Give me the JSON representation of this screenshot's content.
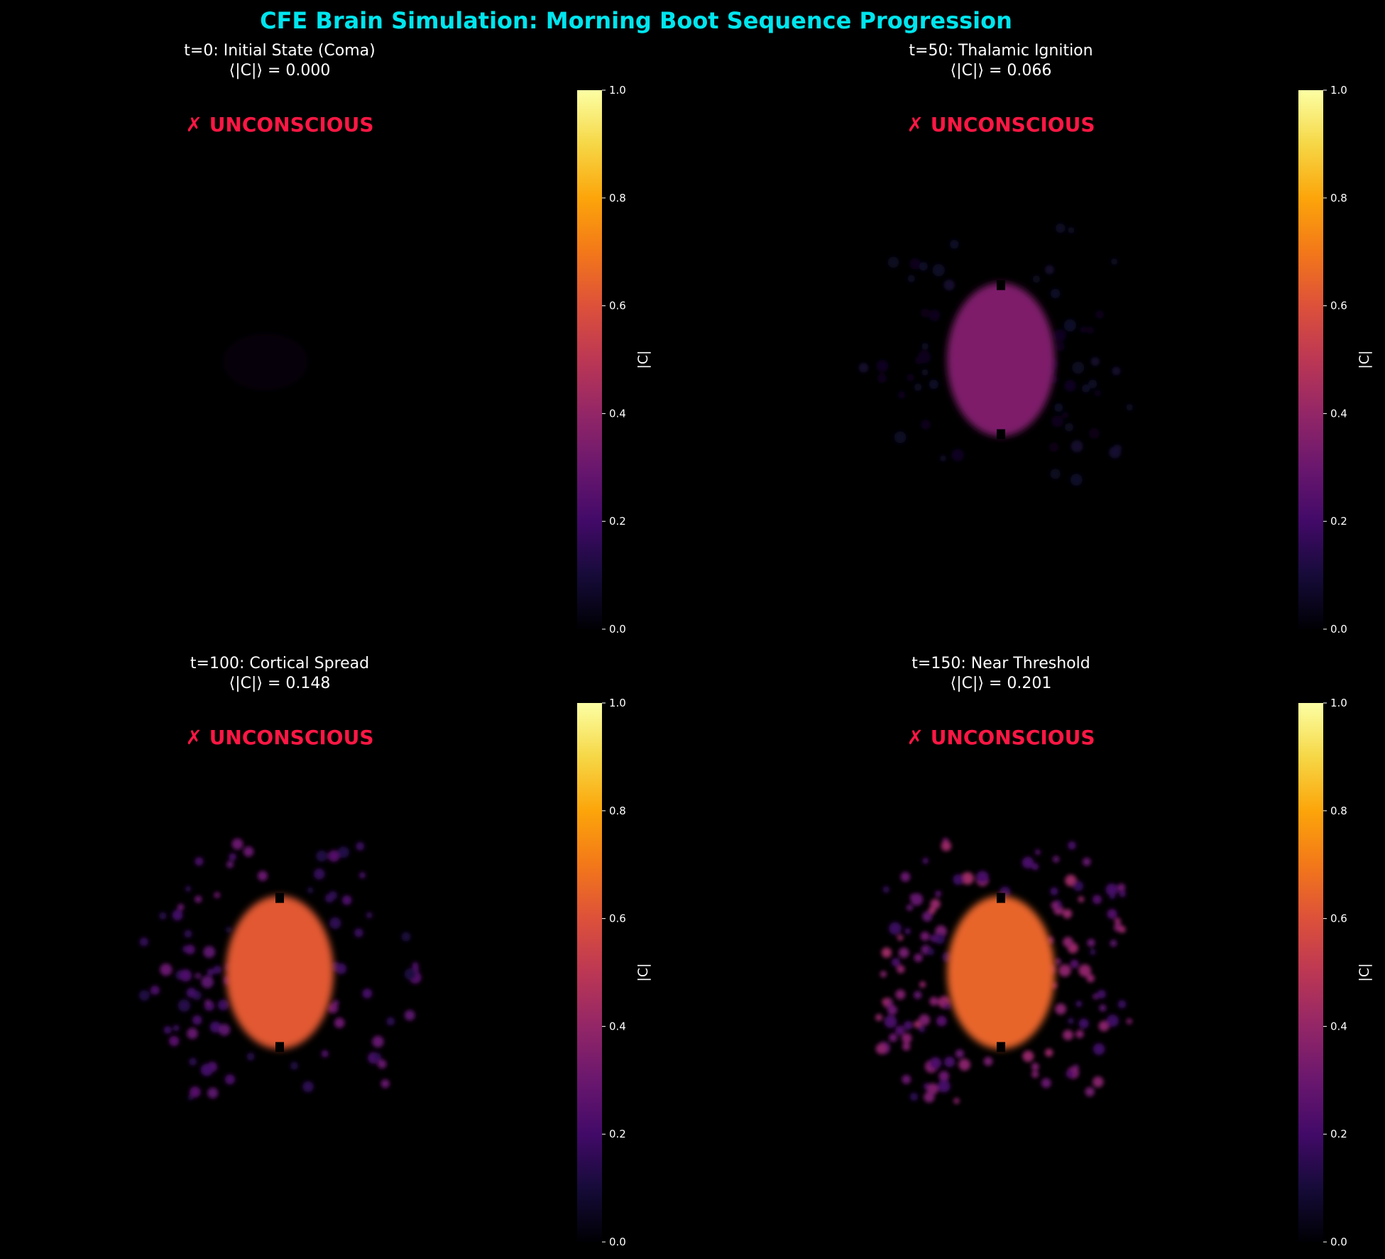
{
  "figure": {
    "title": "CFE Brain Simulation: Morning Boot Sequence Progression",
    "title_color": "#00e5ee",
    "background": "#000000"
  },
  "chart_data": [
    {
      "type": "heatmap",
      "title_line1": "t=0: Initial State (Coma)",
      "title_line2": "⟨|C|⟩ = 0.000",
      "t": 0,
      "mean_C": 0.0,
      "status": "✗ UNCONSCIOUS",
      "status_color": "#ff1744",
      "colormap": "inferno",
      "vmin": 0.0,
      "vmax": 1.0,
      "colorbar_label": "|C|",
      "colorbar_ticks": [
        "0.0",
        "0.2",
        "0.4",
        "0.6",
        "0.8",
        "1.0"
      ],
      "thalamus_C": 0.0,
      "cortex_C": 0.0,
      "cortex_spots": 0
    },
    {
      "type": "heatmap",
      "title_line1": "t=50: Thalamic Ignition",
      "title_line2": "⟨|C|⟩ = 0.066",
      "t": 50,
      "mean_C": 0.066,
      "status": "✗ UNCONSCIOUS",
      "status_color": "#ff1744",
      "colormap": "inferno",
      "vmin": 0.0,
      "vmax": 1.0,
      "colorbar_label": "|C|",
      "colorbar_ticks": [
        "0.0",
        "0.2",
        "0.4",
        "0.6",
        "0.8",
        "1.0"
      ],
      "thalamus_C": 0.35,
      "cortex_C": 0.06,
      "cortex_spots": 60
    },
    {
      "type": "heatmap",
      "title_line1": "t=100: Cortical Spread",
      "title_line2": "⟨|C|⟩ = 0.148",
      "t": 100,
      "mean_C": 0.148,
      "status": "✗ UNCONSCIOUS",
      "status_color": "#ff1744",
      "colormap": "inferno",
      "vmin": 0.0,
      "vmax": 1.0,
      "colorbar_label": "|C|",
      "colorbar_ticks": [
        "0.0",
        "0.2",
        "0.4",
        "0.6",
        "0.8",
        "1.0"
      ],
      "thalamus_C": 0.62,
      "cortex_C": 0.22,
      "cortex_spots": 85
    },
    {
      "type": "heatmap",
      "title_line1": "t=150: Near Threshold",
      "title_line2": "⟨|C|⟩ = 0.201",
      "t": 150,
      "mean_C": 0.201,
      "status": "✗ UNCONSCIOUS",
      "status_color": "#ff1744",
      "colormap": "inferno",
      "vmin": 0.0,
      "vmax": 1.0,
      "colorbar_label": "|C|",
      "colorbar_ticks": [
        "0.0",
        "0.2",
        "0.4",
        "0.6",
        "0.8",
        "1.0"
      ],
      "thalamus_C": 0.65,
      "cortex_C": 0.3,
      "cortex_spots": 130
    }
  ]
}
